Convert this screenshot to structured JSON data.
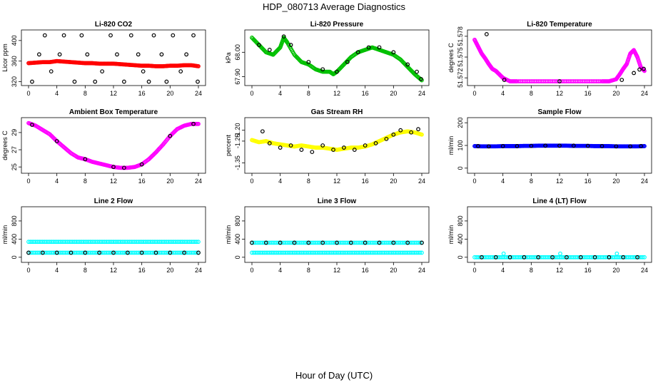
{
  "figure": {
    "title": "HDP_080713  Average Diagnostics",
    "xlabel": "Hour of Day (UTC)"
  },
  "chart_data": [
    {
      "type": "scatter",
      "title": "Li-820 CO2",
      "ylabel": "Licor ppm",
      "xlim": [
        0,
        24
      ],
      "xticks": [
        0,
        4,
        8,
        12,
        16,
        20,
        24
      ],
      "ylim": [
        318,
        415
      ],
      "yticks": [
        320,
        360,
        400
      ],
      "series": [
        {
          "name": "avg",
          "color": "#ff0000",
          "shape": "circle",
          "x": [
            0,
            1,
            2,
            3,
            4,
            5,
            6,
            7,
            8,
            9,
            10,
            11,
            12,
            13,
            14,
            15,
            16,
            17,
            18,
            19,
            20,
            21,
            22,
            23,
            24
          ],
          "y": [
            356,
            357,
            358,
            358,
            360,
            359,
            358,
            357,
            356,
            356,
            355,
            355,
            355,
            354,
            353,
            352,
            351,
            351,
            350,
            350,
            351,
            351,
            352,
            352,
            350
          ]
        },
        {
          "name": "samples",
          "color": "#000000",
          "shape": "circle",
          "x": [
            0.5,
            1.5,
            2.3,
            3.2,
            4.4,
            5.0,
            6.5,
            7.5,
            8.3,
            9.4,
            10.4,
            11.6,
            12.5,
            13.5,
            14.5,
            15.5,
            16.2,
            17.0,
            17.7,
            18.8,
            19.5,
            20.4,
            21.5,
            22.3,
            23.3,
            23.9
          ],
          "y": [
            320,
            373,
            410,
            340,
            373,
            410,
            320,
            410,
            373,
            320,
            340,
            410,
            373,
            320,
            410,
            373,
            340,
            320,
            410,
            373,
            320,
            410,
            340,
            373,
            410,
            320
          ]
        }
      ]
    },
    {
      "type": "scatter",
      "title": "Li-820 Pressure",
      "ylabel": "kPa",
      "xlim": [
        0,
        24
      ],
      "xticks": [
        0,
        4,
        8,
        12,
        16,
        20,
        24
      ],
      "ylim": [
        67.875,
        68.08
      ],
      "yticks": [
        67.9,
        68.0
      ],
      "ytick_labels": [
        "67.90",
        "68.00"
      ],
      "series": [
        {
          "name": "avg",
          "color": "#00c000",
          "shape": "circle",
          "x": [
            0,
            1,
            2,
            3,
            4,
            4.5,
            5,
            6,
            7,
            8,
            9,
            10,
            11,
            11.5,
            12,
            13,
            14,
            15,
            16,
            17,
            18,
            19,
            20,
            21,
            22,
            23,
            24
          ],
          "y": [
            68.06,
            68.03,
            68.0,
            67.99,
            68.02,
            68.06,
            68.04,
            67.99,
            67.96,
            67.95,
            67.93,
            67.92,
            67.92,
            67.91,
            67.92,
            67.95,
            67.98,
            68.0,
            68.01,
            68.02,
            68.01,
            68.0,
            67.99,
            67.97,
            67.94,
            67.91,
            67.885
          ]
        },
        {
          "name": "samples",
          "color": "#000000",
          "shape": "circle",
          "x": [
            1,
            2.5,
            4.5,
            5.5,
            8,
            10,
            12,
            13.5,
            15,
            16.5,
            18,
            20,
            22,
            23.3,
            23.9
          ],
          "y": [
            68.03,
            68.01,
            68.065,
            68.03,
            67.96,
            67.93,
            67.92,
            67.96,
            68.0,
            68.02,
            68.02,
            68.0,
            67.95,
            67.92,
            67.89
          ]
        }
      ]
    },
    {
      "type": "scatter",
      "title": "Li-820 Temperature",
      "ylabel": "degrees C",
      "xlim": [
        0,
        24
      ],
      "xticks": [
        0,
        4,
        8,
        12,
        16,
        20,
        24
      ],
      "ylim": [
        51.5713,
        51.5785
      ],
      "yticks": [
        51.572,
        51.575,
        51.578
      ],
      "ytick_labels": [
        "51.572",
        "51.575",
        "51.578"
      ],
      "series": [
        {
          "name": "avg",
          "color": "#ff00ff",
          "shape": "circle",
          "x": [
            0,
            0.5,
            1,
            1.5,
            2,
            2.5,
            3,
            3.5,
            4,
            5,
            6,
            8,
            10,
            12,
            14,
            16,
            18,
            19,
            20,
            20.5,
            21,
            21.5,
            22,
            22.5,
            23,
            23.5,
            24
          ],
          "y": [
            51.5775,
            51.5765,
            51.5755,
            51.5748,
            51.574,
            51.5733,
            51.573,
            51.5725,
            51.572,
            51.5715,
            51.5715,
            51.5715,
            51.5715,
            51.5715,
            51.5715,
            51.5715,
            51.5715,
            51.5715,
            51.5718,
            51.5725,
            51.5733,
            51.574,
            51.5755,
            51.576,
            51.575,
            51.5735,
            51.573
          ]
        },
        {
          "name": "samples",
          "color": "#000000",
          "shape": "circle",
          "x": [
            1.7,
            4.2,
            12,
            20.8,
            22.5,
            23.3,
            23.9
          ],
          "y": [
            51.5783,
            51.5717,
            51.5715,
            51.5717,
            51.5727,
            51.5732,
            51.5733
          ]
        }
      ]
    },
    {
      "type": "scatter",
      "title": "Ambient Box Temperature",
      "ylabel": "degrees C",
      "xlim": [
        0,
        24
      ],
      "xticks": [
        0,
        4,
        8,
        12,
        16,
        20,
        24
      ],
      "ylim": [
        24.6,
        30.4
      ],
      "yticks": [
        25,
        27,
        29
      ],
      "series": [
        {
          "name": "avg",
          "color": "#ff00ff",
          "shape": "circle",
          "x": [
            0,
            1,
            2,
            3,
            4,
            5,
            6,
            7,
            8,
            9,
            10,
            11,
            12,
            13,
            14,
            15,
            16,
            17,
            18,
            19,
            20,
            21,
            22,
            23,
            24
          ],
          "y": [
            30.1,
            29.8,
            29.3,
            28.8,
            28.0,
            27.3,
            26.6,
            26.1,
            25.9,
            25.6,
            25.4,
            25.2,
            25.0,
            24.9,
            24.9,
            25.0,
            25.3,
            25.9,
            26.7,
            27.6,
            28.6,
            29.4,
            29.8,
            30.0,
            30.0
          ]
        },
        {
          "name": "samples",
          "color": "#000000",
          "shape": "circle",
          "x": [
            0.5,
            4,
            8,
            12,
            13.5,
            16,
            20,
            23.3
          ],
          "y": [
            29.9,
            28.0,
            25.9,
            25.0,
            24.9,
            25.3,
            28.6,
            30.0
          ]
        }
      ]
    },
    {
      "type": "scatter",
      "title": "Gas Stream RH",
      "ylabel": "percent",
      "xlim": [
        0,
        24
      ],
      "xticks": [
        0,
        4,
        8,
        12,
        16,
        20,
        24
      ],
      "ylim": [
        -1.385,
        -1.155
      ],
      "yticks": [
        -1.35,
        -1.25,
        -1.2
      ],
      "ytick_labels": [
        "-1.35",
        "-1.25",
        "-1.20"
      ],
      "series": [
        {
          "name": "avg",
          "color": "#ffff00",
          "shape": "circle",
          "x": [
            0,
            1,
            2,
            3,
            4,
            5,
            6,
            7,
            8,
            9,
            10,
            11,
            12,
            13,
            14,
            15,
            16,
            17,
            18,
            19,
            20,
            21,
            22,
            23,
            24
          ],
          "y": [
            -1.245,
            -1.255,
            -1.25,
            -1.26,
            -1.265,
            -1.27,
            -1.275,
            -1.27,
            -1.275,
            -1.28,
            -1.28,
            -1.285,
            -1.29,
            -1.285,
            -1.28,
            -1.28,
            -1.275,
            -1.265,
            -1.25,
            -1.235,
            -1.22,
            -1.21,
            -1.205,
            -1.21,
            -1.22
          ]
        },
        {
          "name": "samples",
          "color": "#000000",
          "shape": "circle",
          "x": [
            1.5,
            2.5,
            4,
            5.5,
            7,
            8.5,
            10,
            11.5,
            13,
            14.5,
            16,
            17.5,
            19,
            20,
            21,
            22.5,
            23.5
          ],
          "y": [
            -1.205,
            -1.26,
            -1.28,
            -1.27,
            -1.29,
            -1.3,
            -1.27,
            -1.29,
            -1.28,
            -1.29,
            -1.27,
            -1.26,
            -1.24,
            -1.22,
            -1.2,
            -1.21,
            -1.195
          ]
        }
      ]
    },
    {
      "type": "scatter",
      "title": "Sample Flow",
      "ylabel": "ml/min",
      "xlim": [
        0,
        24
      ],
      "xticks": [
        0,
        4,
        8,
        12,
        16,
        20,
        24
      ],
      "ylim": [
        -10,
        210
      ],
      "yticks": [
        0,
        100,
        200
      ],
      "series": [
        {
          "name": "avg",
          "color": "#0000ff",
          "shape": "circle",
          "x": [
            0,
            1,
            2,
            3,
            4,
            5,
            6,
            7,
            8,
            9,
            10,
            11,
            12,
            13,
            14,
            15,
            16,
            17,
            18,
            19,
            20,
            21,
            22,
            23,
            24
          ],
          "y": [
            97,
            96,
            96,
            96,
            97,
            97,
            97,
            98,
            98,
            99,
            99,
            99,
            99,
            99,
            98,
            98,
            98,
            97,
            97,
            97,
            96,
            96,
            96,
            96,
            97
          ]
        },
        {
          "name": "samples",
          "color": "#000000",
          "shape": "circle",
          "x": [
            0.5,
            2,
            4,
            6,
            8,
            10,
            12,
            14,
            16,
            18,
            20,
            22,
            23.5
          ],
          "y": [
            97,
            96,
            97,
            97,
            98,
            99,
            99,
            99,
            98,
            97,
            96,
            96,
            97
          ]
        }
      ]
    },
    {
      "type": "scatter",
      "title": "Line 2 Flow",
      "ylabel": "ml/min",
      "xlim": [
        0,
        24
      ],
      "xticks": [
        0,
        4,
        8,
        12,
        16,
        20,
        24
      ],
      "ylim": [
        -50,
        1050
      ],
      "yticks": [
        0,
        400,
        800
      ],
      "series": [
        {
          "name": "upper",
          "color": "#00ffff",
          "shape": "circle",
          "x": [
            0,
            2,
            4,
            6,
            8,
            10,
            12,
            14,
            16,
            18,
            20,
            22,
            24
          ],
          "y": [
            340,
            340,
            340,
            340,
            340,
            340,
            340,
            340,
            340,
            340,
            340,
            340,
            340
          ]
        },
        {
          "name": "lower",
          "color": "#00ffff",
          "shape": "circle",
          "x": [
            0,
            2,
            4,
            6,
            8,
            10,
            12,
            14,
            16,
            18,
            20,
            22,
            24
          ],
          "y": [
            100,
            100,
            100,
            100,
            100,
            100,
            100,
            100,
            100,
            100,
            100,
            100,
            100
          ]
        },
        {
          "name": "samples",
          "color": "#000000",
          "shape": "circle",
          "x": [
            0,
            2,
            4,
            6,
            8,
            10,
            12,
            14,
            16,
            18,
            20,
            22,
            24
          ],
          "y": [
            100,
            100,
            100,
            100,
            100,
            100,
            100,
            100,
            100,
            100,
            100,
            100,
            100
          ]
        }
      ]
    },
    {
      "type": "scatter",
      "title": "Line 3 Flow",
      "ylabel": "ml/min",
      "xlim": [
        0,
        24
      ],
      "xticks": [
        0,
        4,
        8,
        12,
        16,
        20,
        24
      ],
      "ylim": [
        -50,
        1050
      ],
      "yticks": [
        0,
        400,
        800
      ],
      "series": [
        {
          "name": "upper",
          "color": "#00ffff",
          "shape": "circle",
          "x": [
            0,
            2,
            4,
            6,
            8,
            10,
            12,
            14,
            16,
            18,
            20,
            22,
            24
          ],
          "y": [
            320,
            320,
            320,
            320,
            320,
            320,
            320,
            320,
            320,
            320,
            320,
            320,
            320
          ]
        },
        {
          "name": "lower",
          "color": "#00ffff",
          "shape": "circle",
          "x": [
            0,
            2,
            4,
            6,
            8,
            10,
            12,
            14,
            16,
            18,
            20,
            22,
            24
          ],
          "y": [
            100,
            100,
            100,
            100,
            100,
            100,
            100,
            100,
            100,
            100,
            100,
            100,
            100
          ]
        },
        {
          "name": "samples",
          "color": "#000000",
          "shape": "circle",
          "x": [
            0,
            2,
            4,
            6,
            8,
            10,
            12,
            14,
            16,
            18,
            20,
            22,
            24
          ],
          "y": [
            320,
            320,
            320,
            320,
            320,
            320,
            320,
            320,
            320,
            320,
            320,
            320,
            320
          ]
        }
      ]
    },
    {
      "type": "scatter",
      "title": "Line 4 (LT) Flow",
      "ylabel": "ml/min",
      "xlim": [
        0,
        24
      ],
      "xticks": [
        0,
        4,
        8,
        12,
        16,
        20,
        24
      ],
      "ylim": [
        -50,
        1050
      ],
      "yticks": [
        0,
        400,
        800
      ],
      "series": [
        {
          "name": "avg",
          "color": "#00ffff",
          "shape": "circle",
          "x": [
            0,
            2,
            4,
            6,
            8,
            10,
            12,
            14,
            16,
            18,
            20,
            22,
            24
          ],
          "y": [
            0,
            0,
            0,
            0,
            0,
            0,
            0,
            0,
            0,
            0,
            0,
            0,
            0
          ]
        },
        {
          "name": "spikes",
          "color": "#00ffff",
          "shape": "circle",
          "x": [
            4.1,
            12.1,
            20.1
          ],
          "y": [
            80,
            80,
            80
          ]
        },
        {
          "name": "samples",
          "color": "#000000",
          "shape": "circle",
          "x": [
            1,
            3,
            5,
            7,
            9,
            11,
            13,
            15,
            17,
            19,
            21,
            23
          ],
          "y": [
            0,
            0,
            0,
            0,
            0,
            0,
            0,
            0,
            0,
            0,
            0,
            0
          ]
        }
      ]
    }
  ]
}
